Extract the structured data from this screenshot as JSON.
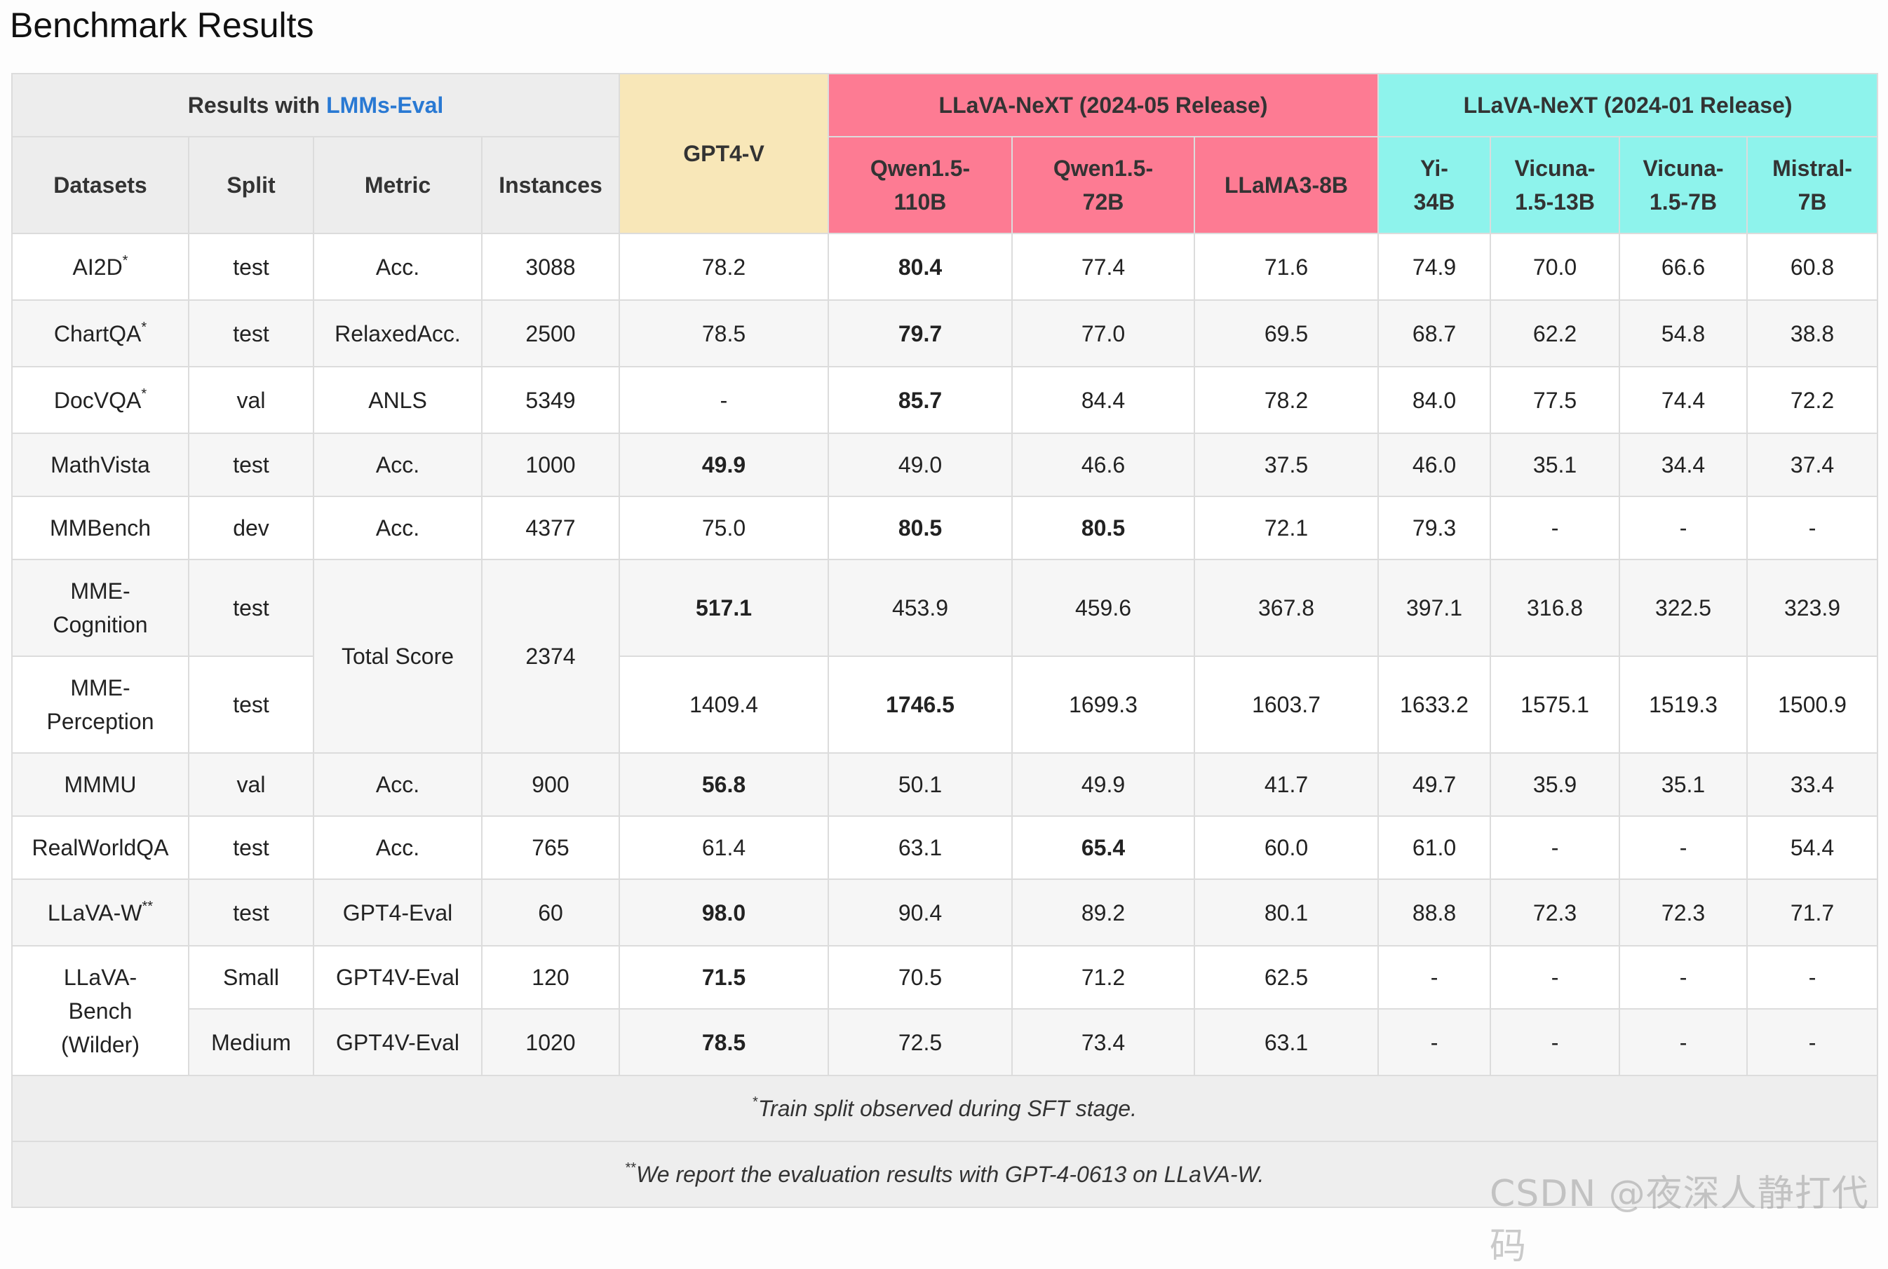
{
  "title": "Benchmark Results",
  "header": {
    "lmms_prefix": "Results with ",
    "lmms_link": "LMMs-Eval",
    "gpt_label": "GPT4-V",
    "may_group": "LLaVA-NeXT (2024-05 Release)",
    "jan_group": "LLaVA-NeXT (2024-01 Release)",
    "col_datasets": "Datasets",
    "col_split": "Split",
    "col_metric": "Metric",
    "col_instances": "Instances",
    "models_may": [
      "Qwen1.5-",
      "110B",
      "Qwen1.5-",
      "72B",
      "LLaMA3-8B"
    ],
    "models_jan": [
      "Yi-",
      "34B",
      "Vicuna-",
      "1.5-13B",
      "Vicuna-",
      "1.5-7B",
      "Mistral-",
      "7B"
    ]
  },
  "rows": [
    {
      "dataset": "AI2D",
      "sup": "*",
      "split": "test",
      "metric": "Acc.",
      "instances": "3088",
      "vals": [
        "78.2",
        "80.4",
        "77.4",
        "71.6",
        "74.9",
        "70.0",
        "66.6",
        "60.8"
      ],
      "bold": 1
    },
    {
      "dataset": "ChartQA",
      "sup": "*",
      "split": "test",
      "metric": "RelaxedAcc.",
      "instances": "2500",
      "vals": [
        "78.5",
        "79.7",
        "77.0",
        "69.5",
        "68.7",
        "62.2",
        "54.8",
        "38.8"
      ],
      "bold": 1
    },
    {
      "dataset": "DocVQA",
      "sup": "*",
      "split": "val",
      "metric": "ANLS",
      "instances": "5349",
      "vals": [
        "-",
        "85.7",
        "84.4",
        "78.2",
        "84.0",
        "77.5",
        "74.4",
        "72.2"
      ],
      "bold": 1
    },
    {
      "dataset": "MathVista",
      "sup": "",
      "split": "test",
      "metric": "Acc.",
      "instances": "1000",
      "vals": [
        "49.9",
        "49.0",
        "46.6",
        "37.5",
        "46.0",
        "35.1",
        "34.4",
        "37.4"
      ],
      "bold": 0
    },
    {
      "dataset": "MMBench",
      "sup": "",
      "split": "dev",
      "metric": "Acc.",
      "instances": "4377",
      "vals": [
        "75.0",
        "80.5",
        "80.5",
        "72.1",
        "79.3",
        "-",
        "-",
        "-"
      ],
      "bold": 1,
      "bold2": 2
    },
    {
      "dataset1": "MME-",
      "dataset2": "Cognition",
      "split": "test",
      "vals": [
        "517.1",
        "453.9",
        "459.6",
        "367.8",
        "397.1",
        "316.8",
        "322.5",
        "323.9"
      ],
      "bold": 0
    },
    {
      "dataset1": "MME-",
      "dataset2": "Perception",
      "split": "test",
      "vals": [
        "1409.4",
        "1746.5",
        "1699.3",
        "1603.7",
        "1633.2",
        "1575.1",
        "1519.3",
        "1500.9"
      ],
      "bold": 1
    },
    {
      "dataset": "MMMU",
      "sup": "",
      "split": "val",
      "metric": "Acc.",
      "instances": "900",
      "vals": [
        "56.8",
        "50.1",
        "49.9",
        "41.7",
        "49.7",
        "35.9",
        "35.1",
        "33.4"
      ],
      "bold": 0
    },
    {
      "dataset": "RealWorldQA",
      "sup": "",
      "split": "test",
      "metric": "Acc.",
      "instances": "765",
      "vals": [
        "61.4",
        "63.1",
        "65.4",
        "60.0",
        "61.0",
        "-",
        "-",
        "54.4"
      ],
      "bold": 2
    },
    {
      "dataset": "LLaVA-W",
      "sup": "**",
      "split": "test",
      "metric": "GPT4-Eval",
      "instances": "60",
      "vals": [
        "98.0",
        "90.4",
        "89.2",
        "80.1",
        "88.8",
        "72.3",
        "72.3",
        "71.7"
      ],
      "bold": 0
    },
    {
      "split": "Small",
      "metric": "GPT4V-Eval",
      "instances": "120",
      "vals": [
        "71.5",
        "70.5",
        "71.2",
        "62.5",
        "-",
        "-",
        "-",
        "-"
      ],
      "bold": 0
    },
    {
      "split": "Medium",
      "metric": "GPT4V-Eval",
      "instances": "1020",
      "vals": [
        "78.5",
        "72.5",
        "73.4",
        "63.1",
        "-",
        "-",
        "-",
        "-"
      ],
      "bold": 0
    }
  ],
  "mme": {
    "metric": "Total Score",
    "instances": "2374"
  },
  "llava_bench": {
    "l1": "LLaVA-",
    "l2": "Bench",
    "l3": "(Wilder)"
  },
  "footnotes": {
    "f1_sup": "*",
    "f1": "Train split observed during SFT stage.",
    "f2_sup": "**",
    "f2": "We report the evaluation results with GPT-4-0613 on LLaVA-W."
  },
  "watermark": "CSDN @夜深人静打代码",
  "colors": {
    "gpt": "#f8e7b8",
    "may": "#fd7b93",
    "jan": "#8ef3ec",
    "link": "#2979d3"
  }
}
